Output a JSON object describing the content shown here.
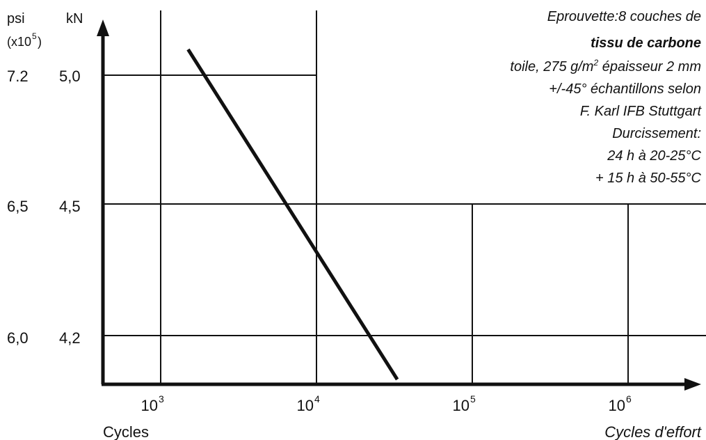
{
  "chart_data": {
    "type": "line",
    "xscale": "log",
    "x_ticks": [
      {
        "value": 1000,
        "base": "10",
        "exp": "3"
      },
      {
        "value": 10000,
        "base": "10",
        "exp": "4"
      },
      {
        "value": 100000,
        "base": "10",
        "exp": "5"
      },
      {
        "value": 1000000,
        "base": "10",
        "exp": "6"
      }
    ],
    "y_ticks": [
      {
        "value": 5.0,
        "label_kn": "5,0",
        "label_psi": "7.2"
      },
      {
        "value": 4.5,
        "label_kn": "4,5",
        "label_psi": "6,5"
      },
      {
        "value": 4.2,
        "label_kn": "4,2",
        "label_psi": "6,0"
      }
    ],
    "xlim": [
      500,
      3000000
    ],
    "ylim": [
      4.0,
      5.2
    ],
    "grid": true,
    "series": [
      {
        "x": [
          1500,
          33000
        ],
        "y": [
          5.1,
          4.1
        ]
      }
    ],
    "axis_labels": {
      "kn": "kN",
      "psi": "psi",
      "psi_unit": "(x10",
      "psi_unit_exp": "5",
      "psi_unit_close": ")",
      "x_left": "Cycles",
      "x_right": "Cycles d'effort"
    },
    "annotation": [
      {
        "text": "Eprouvette:8 couches de",
        "bold": false
      },
      {
        "text": "tissu de carbone",
        "bold": true
      },
      {
        "text": "toile, 275 g/m",
        "sup": "2",
        "after": " épaisseur 2 mm",
        "bold": false
      },
      {
        "text": "+/-45° échantillons selon",
        "bold": false
      },
      {
        "text": "F. Karl IFB Stuttgart",
        "bold": false
      },
      {
        "text": "Durcissement:",
        "bold": false
      },
      {
        "text": "24 h à 20-25°C",
        "bold": false
      },
      {
        "text": "+ 15 h à 50-55°C",
        "bold": false
      }
    ]
  }
}
